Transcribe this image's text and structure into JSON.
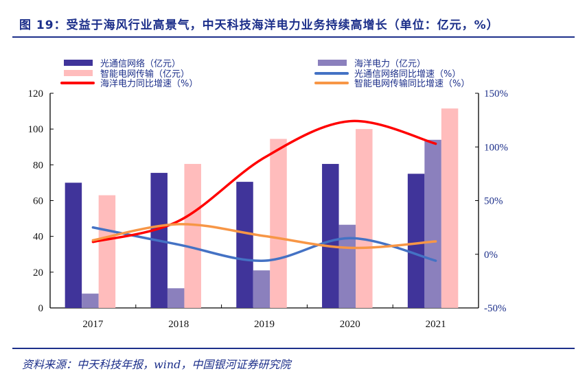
{
  "title": "图 19：受益于海风行业高景气，中天科技海洋电力业务持续高增长（单位：亿元，%）",
  "source": "资料来源：中天科技年报，wind，中国银河证券研究院",
  "chart_data": {
    "type": "bar",
    "categories": [
      "2017",
      "2018",
      "2019",
      "2020",
      "2021"
    ],
    "y_left": {
      "range": [
        0,
        120
      ],
      "ticks": [
        0,
        20,
        40,
        60,
        80,
        100,
        120
      ]
    },
    "y_right": {
      "range": [
        -50,
        150
      ],
      "ticks": [
        "-50%",
        "0%",
        "50%",
        "100%",
        "150%"
      ],
      "tick_values": [
        -50,
        0,
        50,
        100,
        150
      ]
    },
    "grid": false,
    "legend_placement": "top",
    "series": [
      {
        "name": "光通信网络（亿元）",
        "kind": "bar",
        "axis": "left",
        "color": "#40349a",
        "values": [
          70,
          75.5,
          70.5,
          80.5,
          75
        ]
      },
      {
        "name": "海洋电力（亿元）",
        "kind": "bar",
        "axis": "left",
        "color": "#8b80bd",
        "values": [
          8,
          11,
          21,
          46.5,
          94
        ]
      },
      {
        "name": "智能电网传输（亿元）",
        "kind": "bar",
        "axis": "left",
        "color": "#ffbcbc",
        "values": [
          63,
          80.5,
          94.5,
          100,
          111.5
        ]
      },
      {
        "name": "光通信网络同比增速（%）",
        "kind": "line",
        "axis": "right",
        "color": "#4472c4",
        "values": [
          25,
          9,
          -6,
          15,
          -6
        ]
      },
      {
        "name": "海洋电力同比增速（%）",
        "kind": "line",
        "axis": "right",
        "color": "#ff0000",
        "values": [
          11.5,
          31,
          90,
          124,
          103
        ]
      },
      {
        "name": "智能电网传输同比增速（%）",
        "kind": "line",
        "axis": "right",
        "color": "#f79646",
        "values": [
          13,
          28,
          17,
          6,
          12
        ]
      }
    ]
  }
}
